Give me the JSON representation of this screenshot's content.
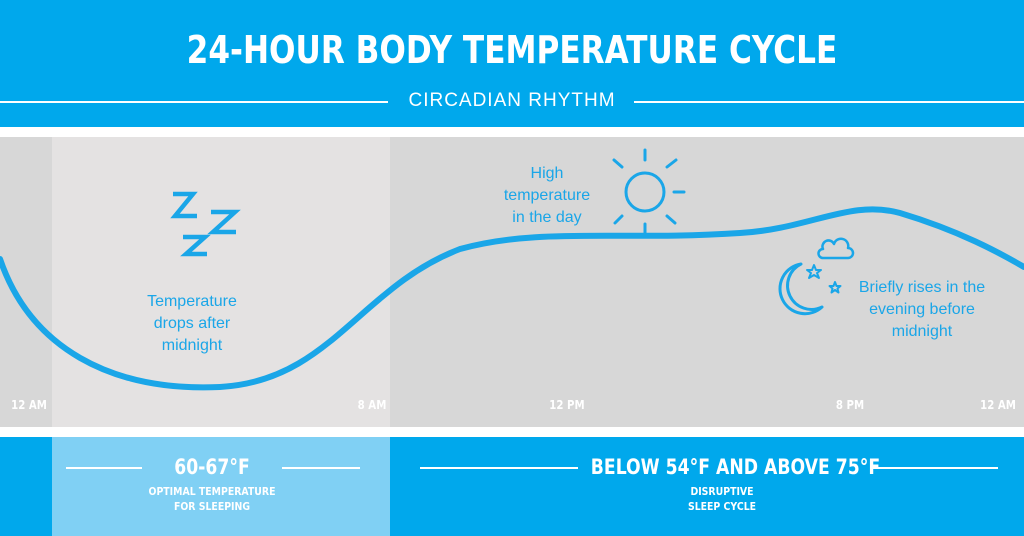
{
  "header": {
    "title": "24-HOUR BODY TEMPERATURE CYCLE",
    "subtitle": "CIRCADIAN RHYTHM"
  },
  "annotations": {
    "sleep": "Temperature\ndrops after\nmidnight",
    "day": "High\ntemperature\nin the day",
    "evening": "Briefly rises in the\nevening before\nmidnight"
  },
  "time_axis": {
    "labels": [
      "12 AM",
      "8 AM",
      "12 PM",
      "8 PM",
      "12 AM"
    ]
  },
  "footer": {
    "optimal_range": "60-67°F",
    "optimal_caption": "OPTIMAL TEMPERATURE\nFOR SLEEPING",
    "disruptive_range": "BELOW 54°F AND ABOVE 75°F",
    "disruptive_caption": "DISRUPTIVE\nSLEEP CYCLE"
  },
  "icons": {
    "sleep": "zzz-icon",
    "day": "sun-icon",
    "evening": "moon-stars-cloud-icon"
  },
  "colors": {
    "accent": "#00a8ec",
    "curve": "#1aa6e8",
    "chart_background": "#d7d7d7",
    "sleep_zone": "#e4e2e2",
    "optimal_zone": "#80d0f4"
  }
}
